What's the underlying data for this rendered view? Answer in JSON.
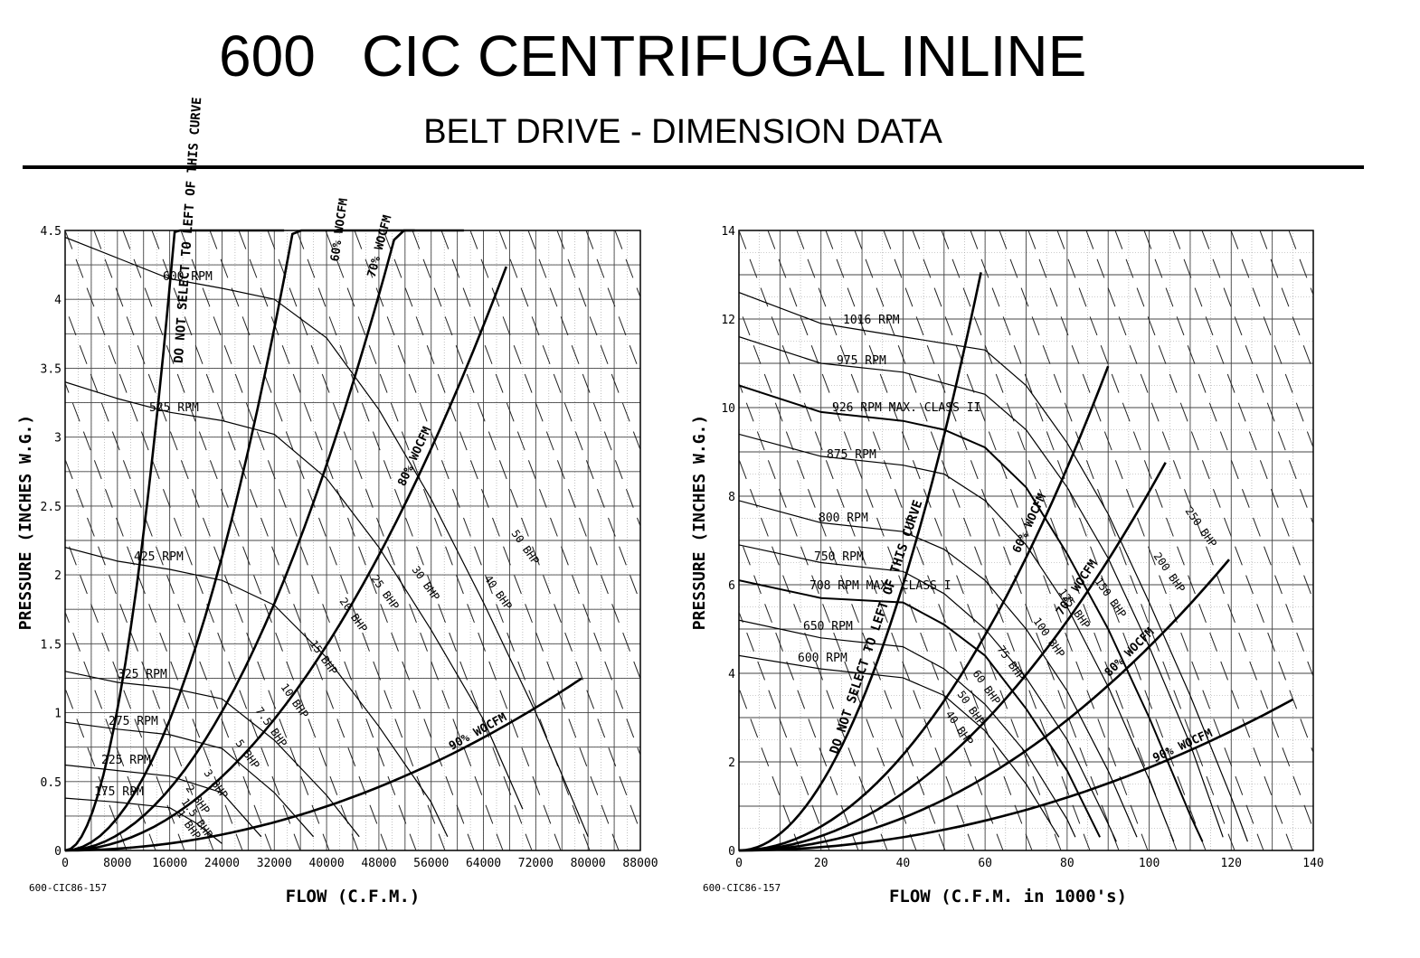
{
  "header": {
    "model": "600",
    "title": "CIC CENTRIFUGAL INLINE",
    "subtitle": "BELT DRIVE - DIMENSION DATA"
  },
  "chart_data": [
    {
      "type": "line",
      "xlabel": "FLOW (C.F.M.)",
      "ylabel": "PRESSURE (INCHES W.G.)",
      "drawing_id": "600-CIC86-157",
      "xlim": [
        0,
        88000
      ],
      "ylim": [
        0,
        4.5
      ],
      "x_ticks": [
        "0",
        "8000",
        "16000",
        "24000",
        "32000",
        "40000",
        "48000",
        "56000",
        "64000",
        "72000",
        "80000",
        "88000"
      ],
      "y_ticks": [
        "0",
        "0.5",
        "1",
        "1.5",
        "2",
        "2.5",
        "3",
        "3.5",
        "4",
        "4.5"
      ],
      "rpm_curves": [
        {
          "label": "600 RPM",
          "points": [
            [
              0,
              4.45
            ],
            [
              8000,
              4.3
            ],
            [
              16000,
              4.15
            ],
            [
              24000,
              4.08
            ],
            [
              32000,
              4.0
            ],
            [
              40000,
              3.72
            ],
            [
              48000,
              3.2
            ],
            [
              56000,
              2.55
            ],
            [
              64000,
              1.8
            ],
            [
              72000,
              1.0
            ],
            [
              80000,
              0.1
            ]
          ]
        },
        {
          "label": "525 RPM",
          "points": [
            [
              0,
              3.4
            ],
            [
              8000,
              3.28
            ],
            [
              16000,
              3.18
            ],
            [
              24000,
              3.12
            ],
            [
              32000,
              3.02
            ],
            [
              40000,
              2.7
            ],
            [
              48000,
              2.2
            ],
            [
              56000,
              1.6
            ],
            [
              64000,
              0.95
            ],
            [
              70000,
              0.3
            ]
          ]
        },
        {
          "label": "425 RPM",
          "points": [
            [
              0,
              2.2
            ],
            [
              8000,
              2.1
            ],
            [
              16000,
              2.04
            ],
            [
              24000,
              1.96
            ],
            [
              32000,
              1.78
            ],
            [
              40000,
              1.4
            ],
            [
              48000,
              0.9
            ],
            [
              56000,
              0.35
            ],
            [
              58500,
              0.1
            ]
          ]
        },
        {
          "label": "325 RPM",
          "points": [
            [
              0,
              1.3
            ],
            [
              8000,
              1.22
            ],
            [
              16000,
              1.18
            ],
            [
              24000,
              1.1
            ],
            [
              32000,
              0.8
            ],
            [
              40000,
              0.4
            ],
            [
              45000,
              0.1
            ]
          ]
        },
        {
          "label": "275 RPM",
          "points": [
            [
              0,
              0.93
            ],
            [
              8000,
              0.88
            ],
            [
              16000,
              0.84
            ],
            [
              24000,
              0.74
            ],
            [
              32000,
              0.42
            ],
            [
              38000,
              0.1
            ]
          ]
        },
        {
          "label": "225 RPM",
          "points": [
            [
              0,
              0.62
            ],
            [
              8000,
              0.58
            ],
            [
              16000,
              0.54
            ],
            [
              24000,
              0.42
            ],
            [
              30000,
              0.1
            ]
          ]
        },
        {
          "label": "175 RPM",
          "points": [
            [
              0,
              0.38
            ],
            [
              8000,
              0.35
            ],
            [
              16000,
              0.31
            ],
            [
              20000,
              0.2
            ],
            [
              24000,
              0.05
            ]
          ]
        }
      ],
      "bhp_labels": [
        "1 BHP",
        "1.5 BHP",
        "2 BHP",
        "3 BHP",
        "5 BHP",
        "7.5 BHP",
        "10 BHP",
        "15 BHP",
        "20 BHP",
        "25 BHP",
        "30 BHP",
        "40 BHP",
        "50 BHP"
      ],
      "system_curves": [
        {
          "label": "DO NOT SELECT TO LEFT OF THIS CURVE",
          "k": 1.6e-08,
          "xmax": 33500
        },
        {
          "label": "60% WOCFM",
          "k": 3.7e-09,
          "xmax": 53500
        },
        {
          "label": "70% WOCFM",
          "k": 1.75e-09,
          "xmax": 61000
        },
        {
          "label": "80% WOCFM",
          "k": 9.3e-10,
          "xmax": 67500
        },
        {
          "label": "90% WOCFM",
          "k": 2e-10,
          "xmax": 79000
        }
      ]
    },
    {
      "type": "line",
      "xlabel": "FLOW (C.F.M. in 1000's)",
      "ylabel": "PRESSURE (INCHES W.G.)",
      "drawing_id": "600-CIC86-157",
      "xlim": [
        0,
        140
      ],
      "ylim": [
        0,
        14
      ],
      "x_ticks": [
        "0",
        "20",
        "40",
        "60",
        "80",
        "100",
        "120",
        "140"
      ],
      "y_ticks": [
        "0",
        "2",
        "4",
        "6",
        "8",
        "10",
        "12",
        "14"
      ],
      "rpm_curves": [
        {
          "label": "1016 RPM",
          "points": [
            [
              0,
              12.6
            ],
            [
              20,
              11.9
            ],
            [
              40,
              11.6
            ],
            [
              60,
              11.3
            ],
            [
              70,
              10.5
            ],
            [
              80,
              9.2
            ],
            [
              90,
              7.6
            ],
            [
              100,
              5.6
            ],
            [
              110,
              3.5
            ],
            [
              120,
              1.2
            ],
            [
              124,
              0.2
            ]
          ]
        },
        {
          "label": "975 RPM",
          "points": [
            [
              0,
              11.6
            ],
            [
              20,
              11.0
            ],
            [
              40,
              10.8
            ],
            [
              60,
              10.3
            ],
            [
              70,
              9.5
            ],
            [
              80,
              8.2
            ],
            [
              90,
              6.6
            ],
            [
              100,
              4.6
            ],
            [
              110,
              2.4
            ],
            [
              118,
              0.3
            ]
          ]
        },
        {
          "label": "926 RPM MAX. CLASS II",
          "points": [
            [
              0,
              10.5
            ],
            [
              20,
              9.9
            ],
            [
              40,
              9.7
            ],
            [
              50,
              9.5
            ],
            [
              60,
              9.1
            ],
            [
              70,
              8.2
            ],
            [
              80,
              6.7
            ],
            [
              90,
              5.0
            ],
            [
              100,
              3.0
            ],
            [
              110,
              0.8
            ],
            [
              113,
              0.2
            ]
          ]
        },
        {
          "label": "875 RPM",
          "points": [
            [
              0,
              9.4
            ],
            [
              20,
              8.9
            ],
            [
              40,
              8.7
            ],
            [
              50,
              8.5
            ],
            [
              60,
              7.9
            ],
            [
              70,
              6.9
            ],
            [
              80,
              5.5
            ],
            [
              90,
              3.7
            ],
            [
              100,
              1.6
            ],
            [
              106,
              0.2
            ]
          ]
        },
        {
          "label": "800 RPM",
          "points": [
            [
              0,
              7.9
            ],
            [
              20,
              7.4
            ],
            [
              40,
              7.2
            ],
            [
              50,
              6.8
            ],
            [
              60,
              6.1
            ],
            [
              70,
              5.0
            ],
            [
              80,
              3.6
            ],
            [
              90,
              1.8
            ],
            [
              97,
              0.3
            ]
          ]
        },
        {
          "label": "750 RPM",
          "points": [
            [
              0,
              6.9
            ],
            [
              20,
              6.5
            ],
            [
              40,
              6.3
            ],
            [
              50,
              5.8
            ],
            [
              60,
              5.0
            ],
            [
              70,
              3.9
            ],
            [
              80,
              2.5
            ],
            [
              90,
              0.6
            ],
            [
              92,
              0.2
            ]
          ]
        },
        {
          "label": "708 RPM MAX. CLASS I",
          "points": [
            [
              0,
              6.1
            ],
            [
              20,
              5.7
            ],
            [
              40,
              5.6
            ],
            [
              50,
              5.1
            ],
            [
              60,
              4.4
            ],
            [
              70,
              3.2
            ],
            [
              80,
              1.8
            ],
            [
              88,
              0.3
            ]
          ]
        },
        {
          "label": "650 RPM",
          "points": [
            [
              0,
              5.2
            ],
            [
              20,
              4.8
            ],
            [
              40,
              4.6
            ],
            [
              50,
              4.1
            ],
            [
              60,
              3.3
            ],
            [
              70,
              2.2
            ],
            [
              80,
              0.7
            ],
            [
              82,
              0.3
            ]
          ]
        },
        {
          "label": "600 RPM",
          "points": [
            [
              0,
              4.4
            ],
            [
              20,
              4.1
            ],
            [
              40,
              3.9
            ],
            [
              50,
              3.5
            ],
            [
              60,
              2.7
            ],
            [
              70,
              1.5
            ],
            [
              78,
              0.3
            ]
          ]
        }
      ],
      "bhp_labels": [
        "40 BHP",
        "50 BHP",
        "60 BHP",
        "75 BHP",
        "100 BHP",
        "125 BHP",
        "150 BHP",
        "200 BHP",
        "250 BHP"
      ],
      "system_curves": [
        {
          "label": "DO NOT SELECT TO LEFT OF THIS CURVE",
          "k": 0.00375,
          "xmax": 59000
        },
        {
          "label": "60% WOCFM",
          "k": 0.00135,
          "xmax": 90000
        },
        {
          "label": "70% WOCFM",
          "k": 0.00081,
          "xmax": 104000
        },
        {
          "label": "80% WOCFM",
          "k": 0.00046,
          "xmax": 119500
        },
        {
          "label": "90% WOCFM",
          "k": 0.000187,
          "xmax": 135000
        }
      ]
    }
  ]
}
